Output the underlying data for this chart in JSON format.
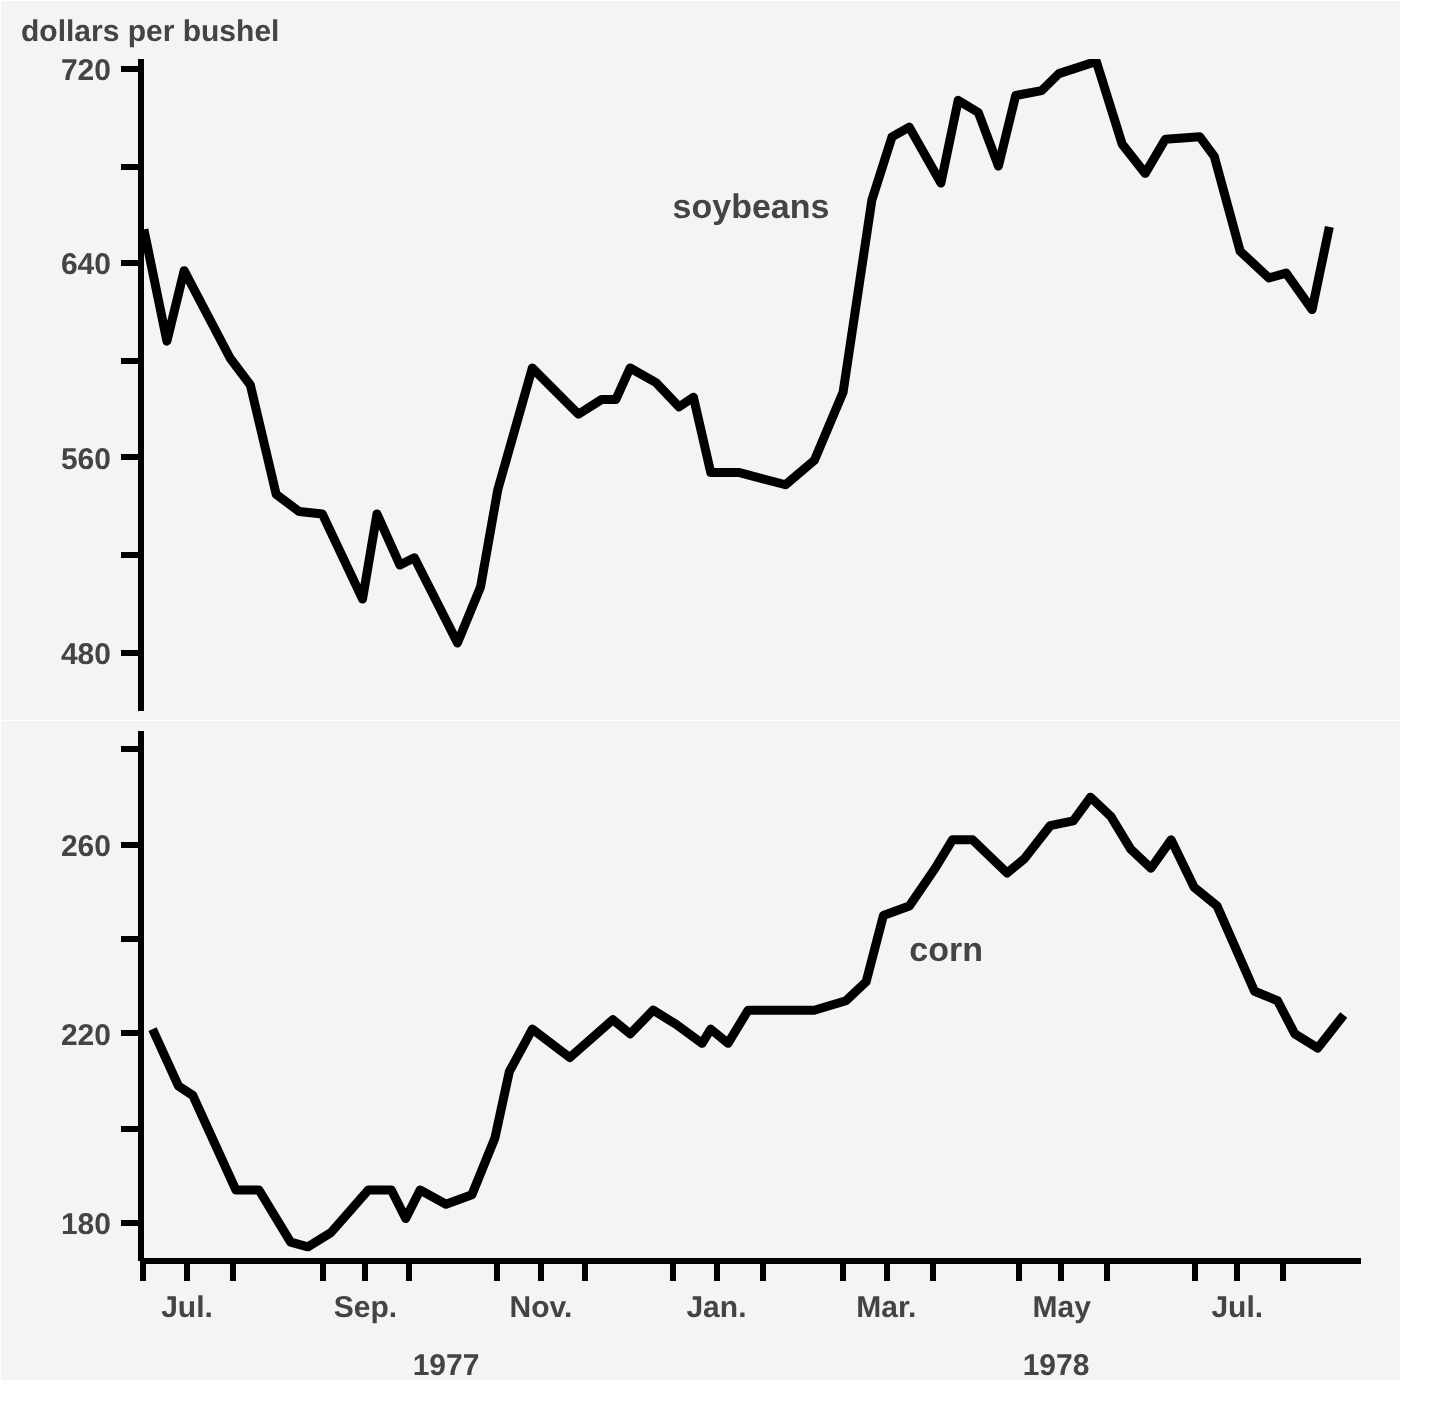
{
  "chart_data": [
    {
      "type": "line",
      "ylabel": "dollars per bushel",
      "xlim": [
        "1977-06-30",
        "1978-08-28"
      ],
      "ylim": [
        456,
        724
      ],
      "yticks": [
        480,
        {
          "value": 520,
          "label": null
        },
        560,
        {
          "value": 600,
          "label": null
        },
        640,
        {
          "value": 680,
          "label": null
        },
        720
      ],
      "tick_labels": "y",
      "grid": false,
      "x": [
        "1977-07-01",
        "1977-07-09",
        "1977-07-15",
        "1977-07-31",
        "1977-08-07",
        "1977-08-16",
        "1977-08-24",
        "1977-09-01",
        "1977-09-15",
        "1977-09-20",
        "1977-09-28",
        "1977-10-03",
        "1977-10-18",
        "1977-10-26",
        "1977-11-01",
        "1977-11-13",
        "1977-11-29",
        "1977-12-07",
        "1977-12-12",
        "1977-12-17",
        "1977-12-26",
        "1978-01-03",
        "1978-01-08",
        "1978-01-14",
        "1978-01-24",
        "1978-02-09",
        "1978-02-19",
        "1978-03-01",
        "1978-03-11",
        "1978-03-18",
        "1978-03-24",
        "1978-04-04",
        "1978-04-10",
        "1978-04-17",
        "1978-04-24",
        "1978-04-30",
        "1978-05-09",
        "1978-05-15",
        "1978-05-28",
        "1978-06-06",
        "1978-06-14",
        "1978-06-21",
        "1978-07-03",
        "1978-07-08",
        "1978-07-17",
        "1978-07-27",
        "1978-08-02",
        "1978-08-11",
        "1978-08-17"
      ],
      "series": [
        {
          "name": "soybeans",
          "color": "#000000",
          "values": [
            654,
            608,
            637,
            601,
            590,
            545,
            538,
            537,
            502,
            537,
            516,
            519,
            484,
            507,
            547,
            597,
            578,
            584,
            584,
            597,
            591,
            581,
            585,
            554,
            554,
            549,
            559,
            587,
            666,
            692,
            696,
            673,
            707,
            702,
            680,
            709,
            711,
            718,
            723,
            689,
            677,
            691,
            692,
            684,
            645,
            634,
            636,
            621,
            655
          ]
        }
      ]
    },
    {
      "type": "line",
      "xlim": [
        "1977-06-30",
        "1978-08-28"
      ],
      "ylim": [
        172,
        284
      ],
      "yticks": [
        180,
        {
          "value": 200,
          "label": null
        },
        220,
        {
          "value": 240,
          "label": null
        },
        260,
        {
          "value": 280,
          "label": null
        }
      ],
      "xticks": [
        {
          "value": "1977-07-01",
          "label": null
        },
        {
          "value": "1977-07-16",
          "label": "Jul."
        },
        {
          "value": "1977-08-01",
          "label": null
        },
        {
          "value": "1977-09-01",
          "label": null
        },
        {
          "value": "1977-09-16",
          "label": "Sep."
        },
        {
          "value": "1977-10-01",
          "label": null
        },
        {
          "value": "1977-11-01",
          "label": null
        },
        {
          "value": "1977-11-16",
          "label": "Nov."
        },
        {
          "value": "1977-12-01",
          "label": null
        },
        {
          "value": "1978-01-01",
          "label": null
        },
        {
          "value": "1978-01-16",
          "label": "Jan."
        },
        {
          "value": "1978-02-01",
          "label": null
        },
        {
          "value": "1978-03-01",
          "label": null
        },
        {
          "value": "1978-03-16",
          "label": "Mar."
        },
        {
          "value": "1978-04-01",
          "label": null
        },
        {
          "value": "1978-05-01",
          "label": null
        },
        {
          "value": "1978-05-16",
          "label": "May"
        },
        {
          "value": "1978-06-01",
          "label": null
        },
        {
          "value": "1978-07-01",
          "label": null
        },
        {
          "value": "1978-07-16",
          "label": "Jul."
        },
        {
          "value": "1978-08-01",
          "label": null
        }
      ],
      "annotations": [
        "1977",
        "1978"
      ],
      "grid": false,
      "x": [
        "1977-07-04",
        "1977-07-13",
        "1977-07-18",
        "1977-08-02",
        "1977-08-10",
        "1977-08-21",
        "1977-08-27",
        "1977-09-04",
        "1977-09-17",
        "1977-09-25",
        "1977-09-30",
        "1977-10-05",
        "1977-10-14",
        "1977-10-23",
        "1977-10-31",
        "1977-11-05",
        "1977-11-13",
        "1977-11-26",
        "1977-12-11",
        "1977-12-17",
        "1977-12-25",
        "1978-01-02",
        "1978-01-11",
        "1978-01-14",
        "1978-01-20",
        "1978-01-27",
        "1978-02-19",
        "1978-03-02",
        "1978-03-09",
        "1978-03-15",
        "1978-03-24",
        "1978-04-02",
        "1978-04-08",
        "1978-04-15",
        "1978-04-27",
        "1978-05-03",
        "1978-05-12",
        "1978-05-20",
        "1978-05-26",
        "1978-06-02",
        "1978-06-09",
        "1978-06-16",
        "1978-06-23",
        "1978-07-01",
        "1978-07-09",
        "1978-07-22",
        "1978-07-30",
        "1978-08-05",
        "1978-08-13",
        "1978-08-22"
      ],
      "series": [
        {
          "name": "corn",
          "color": "#000000",
          "values": [
            221,
            209,
            207,
            187,
            187,
            176,
            175,
            178,
            187,
            187,
            181,
            187,
            184,
            186,
            198,
            212,
            221,
            215,
            223,
            220,
            225,
            222,
            218,
            221,
            218,
            225,
            225,
            227,
            231,
            245,
            247,
            255,
            261,
            261,
            254,
            257,
            264,
            265,
            270,
            266,
            259,
            255,
            261,
            251,
            247,
            229,
            227,
            220,
            217,
            224
          ]
        }
      ]
    }
  ]
}
